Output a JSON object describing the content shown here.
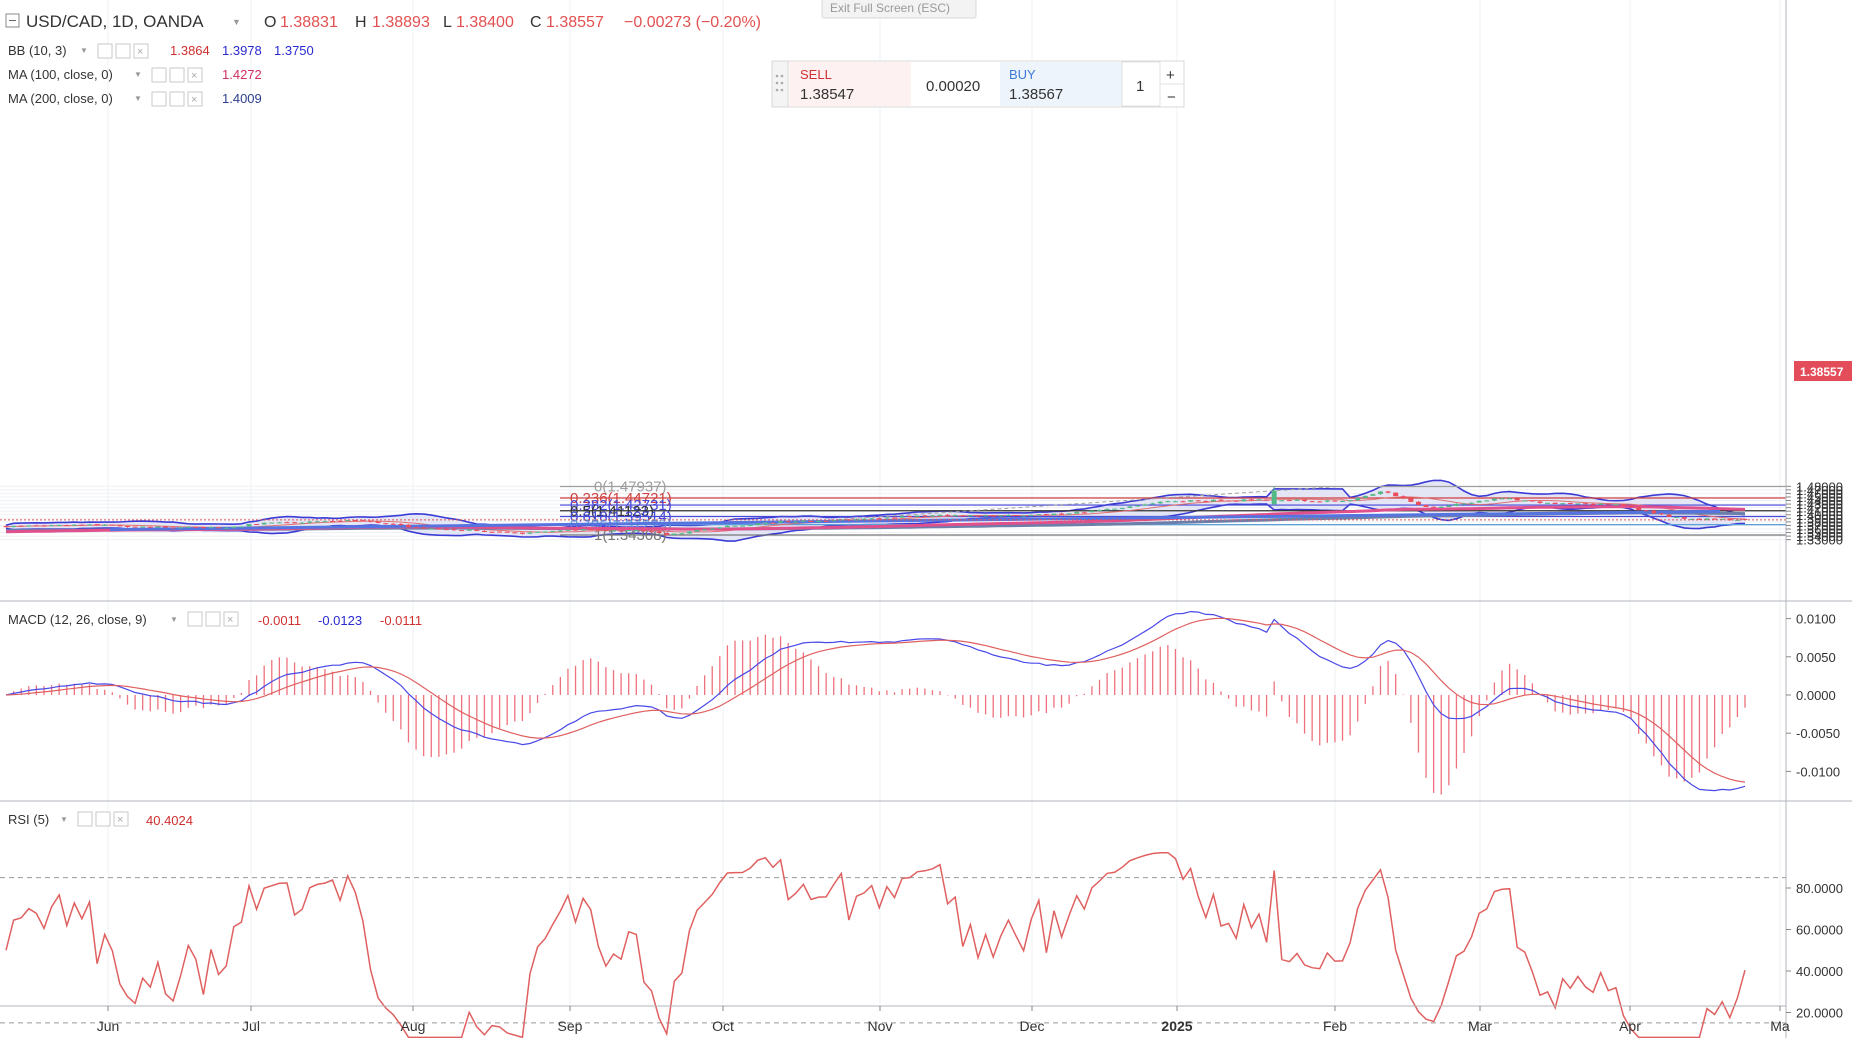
{
  "exit_fullscreen_label": "Exit Full Screen (ESC)",
  "header": {
    "symbol": "USD/CAD, 1D, OANDA",
    "open_label": "O",
    "open": "1.38831",
    "high_label": "H",
    "high": "1.38893",
    "low_label": "L",
    "low": "1.38400",
    "close_label": "C",
    "close": "1.38557",
    "change": "−0.00273 (−0.20%)"
  },
  "indicators": [
    {
      "name": "BB (10, 3)",
      "values": [
        "1.3864",
        "1.3978",
        "1.3750"
      ],
      "colors": [
        "#d03030",
        "#2a2ad0",
        "#2a2ad0"
      ]
    },
    {
      "name": "MA (100, close, 0)",
      "values": [
        "1.4272"
      ],
      "colors": [
        "#d03060"
      ]
    },
    {
      "name": "MA (200, close, 0)",
      "values": [
        "1.4009"
      ],
      "colors": [
        "#2c3e8c"
      ]
    }
  ],
  "trade_widget": {
    "sell_label": "SELL",
    "sell_price": "1.38547",
    "spread": "0.00020",
    "buy_label": "BUY",
    "buy_price": "1.38567",
    "quantity": "1",
    "plus": "+",
    "minus": "−"
  },
  "price_axis": {
    "ticks": [
      "1.48000",
      "1.47000",
      "1.46000",
      "1.45000",
      "1.44000",
      "1.43000",
      "1.42000",
      "1.41000",
      "1.40000",
      "1.39000",
      "1.38000",
      "1.37000",
      "1.36000",
      "1.35000",
      "1.34000",
      "1.33000"
    ],
    "last_price": "1.38557"
  },
  "fib_levels": [
    {
      "label": "0(1.47937)",
      "value": 1.47937,
      "color": "#9e9e9e"
    },
    {
      "label": "0.236(1.44721)",
      "value": 1.44721,
      "color": "#d04040"
    },
    {
      "label": "0.382(1.42731)",
      "value": 1.42731,
      "color": "#4646d8"
    },
    {
      "label": "0.5(1.41123)",
      "value": 1.41123,
      "color": "#333333"
    },
    {
      "label": "0.618(1.39514)",
      "value": 1.39514,
      "color": "#4646d8"
    },
    {
      "label": "0.786(1.37225)",
      "value": 1.37225,
      "color": "#5aa0d8"
    },
    {
      "label": "1(1.34308)",
      "value": 1.34308,
      "color": "#777777"
    }
  ],
  "macd": {
    "label": "MACD (12, 26, close, 9)",
    "values": [
      "-0.0011",
      "-0.0123",
      "-0.0111"
    ],
    "colors": [
      "#d03030",
      "#2a2ad0",
      "#d03030"
    ],
    "ticks": [
      "0.0100",
      "0.0050",
      "0.0000",
      "-0.0050",
      "-0.0100"
    ]
  },
  "rsi": {
    "label": "RSI (5)",
    "value": "40.4024",
    "ticks": [
      "80.0000",
      "60.0000",
      "40.0000",
      "20.0000"
    ]
  },
  "time_axis": [
    "Jun",
    "Jul",
    "Aug",
    "Sep",
    "Oct",
    "Nov",
    "Dec",
    "2025",
    "Feb",
    "Mar",
    "Apr",
    "Ma"
  ],
  "colors": {
    "up": "#53b987",
    "down": "#eb4d5c",
    "bb_line": "#3b3bd6",
    "bb_fill": "#dfe0f3",
    "ma100": "#e0508c",
    "ma200": "#6b7faa",
    "trend": "#5674e0",
    "rsi": "#e06060"
  },
  "chart_data": [
    {
      "type": "candlestick",
      "title": "USD/CAD, 1D, OANDA",
      "ylim": [
        1.325,
        1.485
      ],
      "x_range": [
        "May 2024",
        "May 2025"
      ],
      "series": [
        {
          "name": "BB (10, 3)"
        },
        {
          "name": "MA (100, close, 0)"
        },
        {
          "name": "MA (200, close, 0)"
        }
      ],
      "close_path": [
        [
          "May",
          1.366
        ],
        [
          "Jun",
          1.373
        ],
        [
          "Jun",
          1.366
        ],
        [
          "Jul",
          1.363
        ],
        [
          "Jul",
          1.376
        ],
        [
          "Aug",
          1.386
        ],
        [
          "Aug",
          1.365
        ],
        [
          "Sep",
          1.348
        ],
        [
          "Sep",
          1.358
        ],
        [
          "Sep",
          1.354
        ],
        [
          "Oct",
          1.343
        ],
        [
          "Oct",
          1.362
        ],
        [
          "Oct",
          1.38
        ],
        [
          "Nov",
          1.386
        ],
        [
          "Nov",
          1.4
        ],
        [
          "Nov",
          1.397
        ],
        [
          "Dec",
          1.402
        ],
        [
          "Dec",
          1.418
        ],
        [
          "Dec",
          1.438
        ],
        [
          "Jan",
          1.442
        ],
        [
          "Jan",
          1.438
        ],
        [
          "Feb",
          1.467
        ],
        [
          "Feb",
          1.428
        ],
        [
          "Feb",
          1.418
        ],
        [
          "Mar",
          1.447
        ],
        [
          "Mar",
          1.432
        ],
        [
          "Apr",
          1.43
        ],
        [
          "Apr",
          1.395
        ],
        [
          "Apr",
          1.388
        ],
        [
          "Apr",
          1.3856
        ]
      ]
    },
    {
      "type": "line",
      "title": "MACD (12, 26, close, 9)",
      "ylim": [
        -0.013,
        0.0125
      ],
      "series": [
        {
          "name": "MACD"
        },
        {
          "name": "Signal"
        },
        {
          "name": "Histogram"
        }
      ],
      "last_values": [
        -0.0011,
        -0.0123,
        -0.0111
      ]
    },
    {
      "type": "line",
      "title": "RSI (5)",
      "ylim": [
        5,
        95
      ],
      "levels": [
        85,
        15
      ],
      "last_value": 40.4024
    }
  ]
}
